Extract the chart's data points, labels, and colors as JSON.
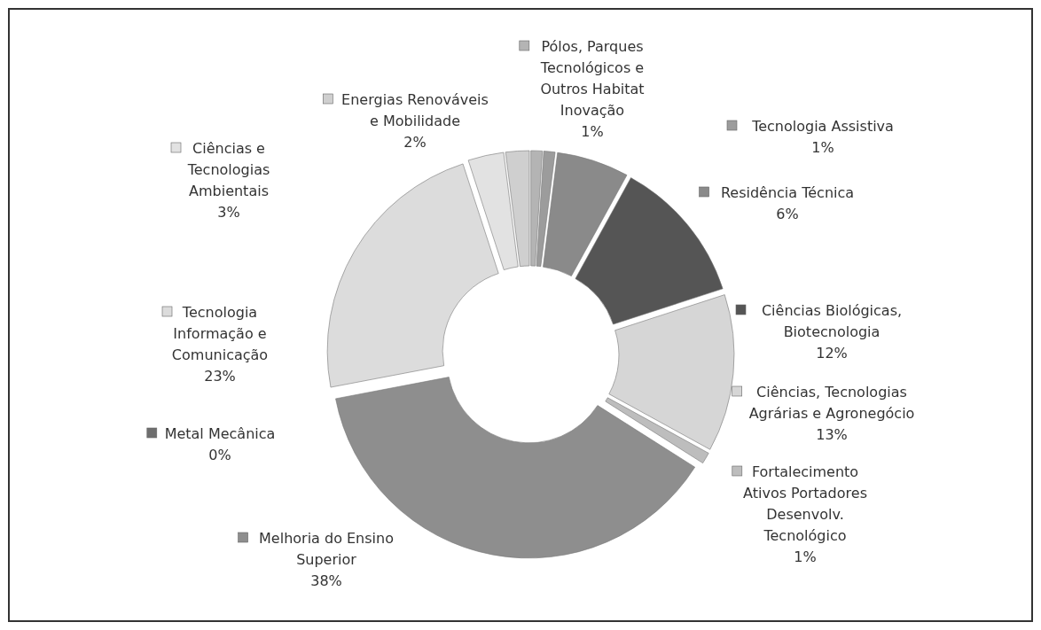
{
  "chart_data": {
    "type": "donut",
    "categories": [
      "Pólos, Parques Tecnológicos e Outros Habitat Inovação",
      "Tecnologia Assistiva",
      "Residência Técnica",
      "Ciências Biológicas, Biotecnologia",
      "Ciências, Tecnologias Agrárias e Agronegócio",
      "Fortalecimento Ativos Portadores Desenvolv. Tecnológico",
      "Melhoria do Ensino Superior",
      "Metal Mecânica",
      "Tecnologia Informação e Comunicação",
      "Ciências e Tecnologias Ambientais",
      "Energias Renováveis e Mobilidade"
    ],
    "values": [
      1,
      1,
      6,
      12,
      13,
      1,
      38,
      0,
      23,
      3,
      2
    ],
    "colors": [
      "#b4b4b4",
      "#9c9c9c",
      "#8a8a8a",
      "#555555",
      "#d6d6d6",
      "#bdbdbd",
      "#8e8e8e",
      "#6e6e6e",
      "#dcdcdc",
      "#e2e2e2",
      "#cfcfcf"
    ],
    "legend": "right",
    "value_labels": [
      "1%",
      "1%",
      "6%",
      "12%",
      "13%",
      "1%",
      "38%",
      "0%",
      "23%",
      "3%",
      "2%"
    ]
  }
}
